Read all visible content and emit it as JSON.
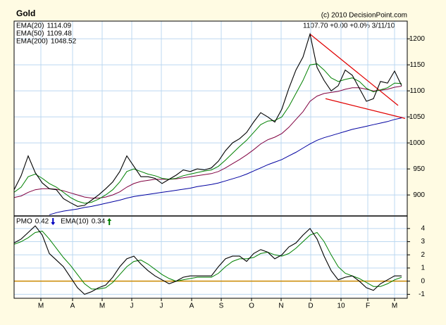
{
  "chart_data": [
    {
      "type": "line",
      "title": "Gold",
      "source": "(c) 2010 DecisionPoint.com",
      "quote": "1107.70 +0.00 +0.0% 3/11/10",
      "categories": [
        null,
        null,
        null,
        null,
        null,
        null,
        null,
        null,
        null,
        null,
        null,
        null,
        null,
        null,
        null,
        null,
        null,
        null,
        null,
        null,
        null,
        null,
        null,
        null,
        null,
        null,
        null,
        null,
        null,
        null,
        null,
        null,
        null,
        null,
        null,
        null,
        null,
        null,
        null,
        null,
        null,
        null,
        null,
        null,
        null,
        null,
        null,
        null,
        null,
        null,
        null,
        null,
        null,
        null,
        null,
        null
      ],
      "xlim": [
        0,
        55.8
      ],
      "ylim": [
        861,
        1234
      ],
      "yticks": [
        900,
        950,
        1000,
        1050,
        1100,
        1150,
        1200
      ],
      "grid": true,
      "series": [
        {
          "name": "Gold",
          "color": "#000000",
          "values": [
            910,
            937,
            975,
            943,
            923,
            912,
            910,
            893,
            885,
            878,
            880,
            890,
            900,
            912,
            925,
            945,
            975,
            955,
            935,
            935,
            932,
            922,
            930,
            938,
            948,
            945,
            950,
            948,
            952,
            965,
            985,
            1000,
            1008,
            1020,
            1040,
            1058,
            1050,
            1040,
            1065,
            1105,
            1140,
            1165,
            1209,
            1145,
            1120,
            1100,
            1110,
            1140,
            1130,
            1105,
            1080,
            1085,
            1118,
            1115,
            1138,
            1110
          ]
        },
        {
          "name": "EMA(20)",
          "label_value": "1114.09",
          "color": "#008000",
          "values": [
            905,
            915,
            935,
            940,
            932,
            922,
            915,
            905,
            895,
            888,
            884,
            886,
            892,
            900,
            910,
            925,
            945,
            950,
            945,
            940,
            937,
            932,
            930,
            932,
            937,
            940,
            943,
            946,
            948,
            955,
            967,
            980,
            993,
            1005,
            1020,
            1035,
            1042,
            1043,
            1050,
            1070,
            1095,
            1120,
            1150,
            1152,
            1140,
            1125,
            1118,
            1122,
            1125,
            1118,
            1105,
            1098,
            1102,
            1106,
            1115,
            1114
          ]
        },
        {
          "name": "EMA(50)",
          "label_value": "1109.48",
          "color": "#800040",
          "values": [
            895,
            898,
            905,
            910,
            912,
            912,
            911,
            908,
            904,
            900,
            896,
            894,
            894,
            896,
            900,
            906,
            915,
            922,
            926,
            928,
            930,
            930,
            930,
            931,
            933,
            935,
            937,
            939,
            941,
            945,
            952,
            960,
            968,
            977,
            987,
            998,
            1006,
            1011,
            1018,
            1030,
            1045,
            1060,
            1080,
            1090,
            1095,
            1097,
            1099,
            1103,
            1106,
            1106,
            1103,
            1100,
            1101,
            1103,
            1107,
            1109
          ]
        },
        {
          "name": "EMA(200)",
          "label_value": "1048.52",
          "color": "#0000a0",
          "values": [
            null,
            null,
            null,
            null,
            null,
            862,
            866,
            869,
            871,
            873,
            876,
            878,
            881,
            884,
            887,
            890,
            894,
            897,
            899,
            901,
            903,
            905,
            907,
            909,
            911,
            913,
            916,
            918,
            920,
            923,
            927,
            931,
            935,
            940,
            946,
            952,
            958,
            963,
            968,
            975,
            982,
            990,
            998,
            1005,
            1010,
            1014,
            1018,
            1022,
            1026,
            1029,
            1032,
            1035,
            1038,
            1041,
            1045,
            1048
          ]
        }
      ],
      "trendlines": [
        {
          "color": "#e00000",
          "x": [
            42,
            54.5
          ],
          "values": [
            1209,
            1072
          ]
        },
        {
          "color": "#e00000",
          "x": [
            44.2,
            55.5
          ],
          "values": [
            1085,
            1047
          ]
        }
      ]
    },
    {
      "type": "line",
      "categories": [
        null,
        null,
        null,
        null,
        null,
        null,
        null,
        null,
        null,
        null,
        null,
        null,
        null,
        null,
        null,
        null,
        null,
        null,
        null,
        null,
        null,
        null,
        null,
        null,
        null,
        null,
        null,
        null,
        null,
        null,
        null,
        null,
        null,
        null,
        null,
        null,
        null,
        null,
        null,
        null,
        null,
        null,
        null,
        null,
        null,
        null,
        null,
        null,
        null,
        null,
        null,
        null,
        null,
        null,
        null,
        null
      ],
      "xlim": [
        0,
        55.8
      ],
      "ylim": [
        -1.3,
        4.9
      ],
      "yticks": [
        -1,
        0,
        1,
        2,
        3,
        4
      ],
      "grid": true,
      "zero_line_color": "#cc8800",
      "xticks": [
        {
          "value": 3.8,
          "label": "M"
        },
        {
          "value": 8.3,
          "label": "A"
        },
        {
          "value": 12.5,
          "label": "M"
        },
        {
          "value": 16.7,
          "label": "J"
        },
        {
          "value": 20.9,
          "label": "J"
        },
        {
          "value": 25.2,
          "label": "A"
        },
        {
          "value": 29.4,
          "label": "S"
        },
        {
          "value": 33.7,
          "label": "O"
        },
        {
          "value": 37.9,
          "label": "N"
        },
        {
          "value": 42.1,
          "label": "D"
        },
        {
          "value": 46.4,
          "label": "10"
        },
        {
          "value": 50.2,
          "label": "F"
        },
        {
          "value": 54.0,
          "label": "M"
        }
      ],
      "series": [
        {
          "name": "PMO",
          "label_value": "0.42",
          "color": "#000000",
          "values": [
            2.9,
            3.2,
            3.7,
            4.2,
            3.5,
            2.1,
            1.6,
            1.1,
            0.3,
            -0.5,
            -1.0,
            -0.8,
            -0.5,
            -0.3,
            0.3,
            1.1,
            1.7,
            1.9,
            1.3,
            0.8,
            0.4,
            0.1,
            -0.2,
            0,
            0.3,
            0.4,
            0.4,
            0.4,
            0.4,
            1.1,
            1.7,
            1.9,
            1.9,
            1.5,
            2.1,
            2.4,
            2.2,
            1.7,
            2.0,
            2.6,
            2.9,
            3.5,
            4.0,
            3.2,
            1.9,
            0.8,
            0.1,
            0.3,
            0.4,
            0,
            -0.5,
            -0.7,
            -0.2,
            0.1,
            0.4,
            0.4
          ]
        },
        {
          "name": "EMA(10)",
          "label_value": "0.34",
          "color": "#008000",
          "values": [
            2.8,
            3.0,
            3.3,
            3.7,
            3.8,
            3.2,
            2.5,
            1.8,
            1.2,
            0.5,
            -0.2,
            -0.6,
            -0.6,
            -0.5,
            -0.1,
            0.5,
            1.1,
            1.5,
            1.6,
            1.3,
            0.9,
            0.5,
            0.2,
            0.0,
            0.1,
            0.2,
            0.3,
            0.3,
            0.3,
            0.6,
            1.1,
            1.5,
            1.7,
            1.7,
            1.8,
            2.1,
            2.2,
            2.0,
            1.9,
            2.1,
            2.5,
            3.0,
            3.5,
            3.7,
            3.0,
            2.0,
            1.1,
            0.6,
            0.4,
            0.2,
            -0.1,
            -0.4,
            -0.4,
            -0.2,
            0.1,
            0.3
          ]
        }
      ]
    }
  ]
}
